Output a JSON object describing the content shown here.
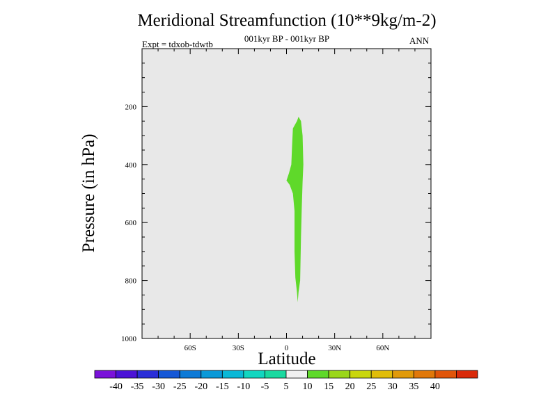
{
  "chart_data": {
    "type": "contour",
    "title": "Meridional Streamfunction (10**9kg/m-2)",
    "subtitle": "001kyr BP - 001kyr BP",
    "left_label": "Expt = tdxob-tdwtb",
    "right_label": "ANN",
    "xlabel": "Latitude",
    "ylabel": "Pressure (in hPa)",
    "xlim": [
      -90,
      90
    ],
    "ylim": [
      1000,
      0
    ],
    "x_ticks": [
      {
        "value": -60,
        "label": "60S"
      },
      {
        "value": -30,
        "label": "30S"
      },
      {
        "value": 0,
        "label": "0"
      },
      {
        "value": 30,
        "label": "30N"
      },
      {
        "value": 60,
        "label": "60N"
      }
    ],
    "y_ticks": [
      {
        "value": 200,
        "label": "200"
      },
      {
        "value": 400,
        "label": "400"
      },
      {
        "value": 600,
        "label": "600"
      },
      {
        "value": 800,
        "label": "800"
      },
      {
        "value": 1000,
        "label": "1000"
      }
    ],
    "background_color": "#e8e8e8",
    "filled_region": {
      "level_range": [
        5,
        10
      ],
      "color": "#5fd92a",
      "outline": [
        [
          0.0,
          455
        ],
        [
          1.5,
          430
        ],
        [
          3.0,
          400
        ],
        [
          3.5,
          330
        ],
        [
          4.0,
          275
        ],
        [
          6.5,
          250
        ],
        [
          7.5,
          235
        ],
        [
          9.0,
          250
        ],
        [
          10.0,
          300
        ],
        [
          10.5,
          400
        ],
        [
          10.0,
          460
        ],
        [
          9.5,
          550
        ],
        [
          9.0,
          650
        ],
        [
          8.5,
          800
        ],
        [
          7.5,
          840
        ],
        [
          7.0,
          875
        ],
        [
          6.5,
          840
        ],
        [
          5.5,
          790
        ],
        [
          5.0,
          700
        ],
        [
          5.0,
          560
        ],
        [
          4.0,
          500
        ],
        [
          2.0,
          470
        ]
      ]
    },
    "colorbar": {
      "levels": [
        -40,
        -35,
        -30,
        -25,
        -20,
        -15,
        -10,
        -5,
        5,
        10,
        15,
        20,
        25,
        30,
        35,
        40
      ],
      "colors": [
        "#7a12d9",
        "#4b12d6",
        "#2a2ed8",
        "#1557d6",
        "#0d7ad6",
        "#0a99d8",
        "#0ab8d6",
        "#12d6c0",
        "#1ad9a0",
        "#f0f0f0",
        "#5fd92a",
        "#9ad61a",
        "#c9d60d",
        "#e0bd0a",
        "#e09a0a",
        "#e0780a",
        "#e0550a",
        "#d92a0a"
      ]
    }
  }
}
